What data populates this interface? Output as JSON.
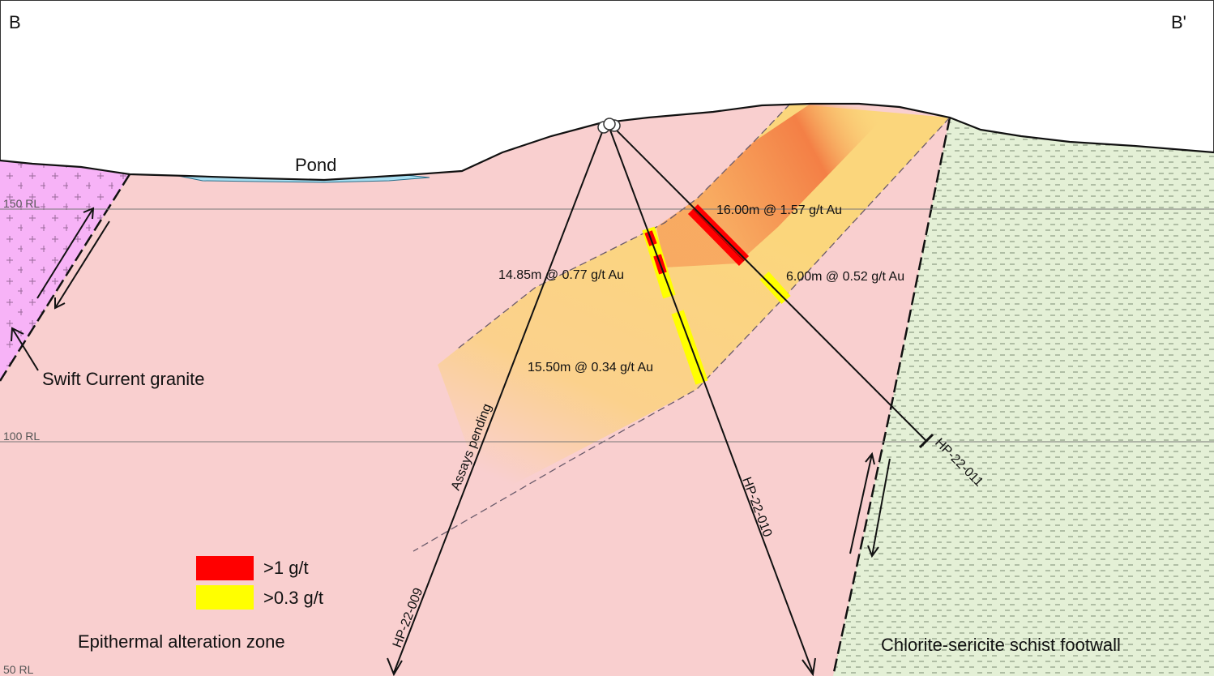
{
  "section": {
    "left_label": "B",
    "right_label": "B'"
  },
  "reference_levels": [
    {
      "label": "150 RL"
    },
    {
      "label": "100 RL"
    },
    {
      "label": "50 RL"
    }
  ],
  "units": {
    "pond": "Pond",
    "granite": "Swift Current granite",
    "alteration": "Epithermal alteration zone",
    "footwall": "Chlorite-sericite schist footwall"
  },
  "drillholes": [
    {
      "id": "HP-22-009",
      "note": "Assays pending"
    },
    {
      "id": "HP-22-010"
    },
    {
      "id": "HP-22-011"
    }
  ],
  "intercepts": [
    {
      "text": "16.00m @ 1.57 g/t Au"
    },
    {
      "text": "14.85m @ 0.77 g/t Au"
    },
    {
      "text": "6.00m @ 0.52 g/t Au"
    },
    {
      "text": "15.50m @ 0.34 g/t Au"
    }
  ],
  "legend": [
    {
      "label": ">1 g/t",
      "color": "#ff0000"
    },
    {
      "label": ">0.3 g/t",
      "color": "#ffff00"
    }
  ],
  "colors": {
    "host_pink": "#f9cfcf",
    "granite_purple": "#f7b3f7",
    "footwall_green": "#e4f0d6",
    "pond_blue": "#a8dff2",
    "alteration_yellow": "#fbd67c",
    "alteration_orange": "#f5884a"
  }
}
